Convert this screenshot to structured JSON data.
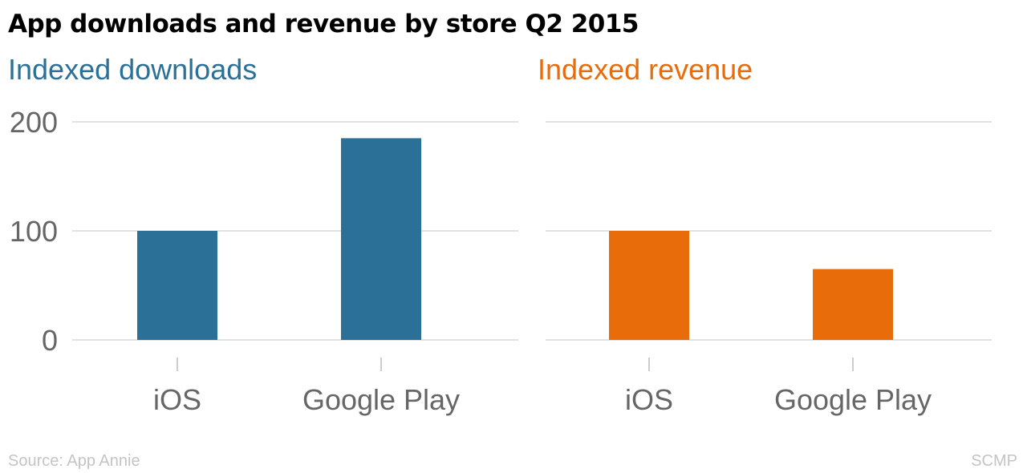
{
  "title": "App downloads and revenue by store Q2 2015",
  "colors": {
    "downloads": "#2b7097",
    "revenue": "#e96c0b",
    "grid": "#d9d9d9",
    "axis_text": "#666666"
  },
  "footer": {
    "source": "Source: App Annie",
    "credit": "SCMP"
  },
  "chart_data": [
    {
      "type": "bar",
      "title": "Indexed downloads",
      "categories": [
        "iOS",
        "Google Play"
      ],
      "values": [
        100,
        185
      ],
      "ylim": [
        0,
        200
      ],
      "yticks": [
        "0",
        "100",
        "200"
      ],
      "color": "#2b7097"
    },
    {
      "type": "bar",
      "title": "Indexed revenue",
      "categories": [
        "iOS",
        "Google Play"
      ],
      "values": [
        100,
        65
      ],
      "ylim": [
        0,
        200
      ],
      "yticks": [],
      "color": "#e96c0b"
    }
  ]
}
